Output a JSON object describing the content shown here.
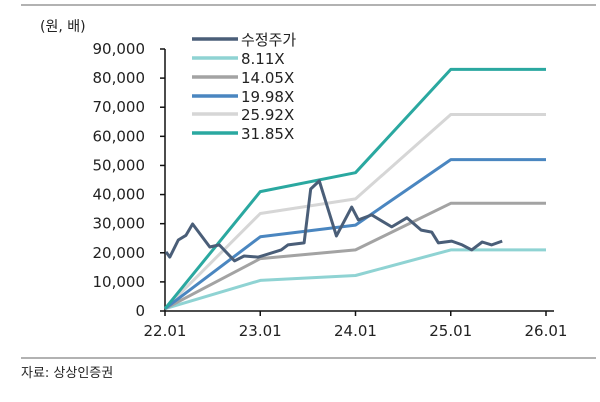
{
  "chart_data": {
    "type": "line",
    "title": "",
    "unit_label": "(원, 배)",
    "source": "자료: 상상인증권",
    "xlabel": "",
    "ylabel": "",
    "xlim": [
      2022,
      2026
    ],
    "ylim": [
      0,
      90000
    ],
    "x_ticks": [
      2022,
      2023,
      2024,
      2025,
      2026
    ],
    "x_tick_labels": [
      "22.01",
      "23.01",
      "24.01",
      "25.01",
      "26.01"
    ],
    "y_ticks": [
      0,
      10000,
      20000,
      30000,
      40000,
      50000,
      60000,
      70000,
      80000,
      90000
    ],
    "y_tick_labels": [
      "0",
      "10,000",
      "20,000",
      "30,000",
      "40,000",
      "50,000",
      "60,000",
      "70,000",
      "80,000",
      "90,000"
    ],
    "grid": false,
    "legend_position": "top-left",
    "series": [
      {
        "name": "수정주가",
        "color": "#4a5e78",
        "points": [
          [
            2022.01,
            20300
          ],
          [
            2022.05,
            18500
          ],
          [
            2022.14,
            24400
          ],
          [
            2022.22,
            26000
          ],
          [
            2022.29,
            29900
          ],
          [
            2022.47,
            22000
          ],
          [
            2022.57,
            22700
          ],
          [
            2022.73,
            17200
          ],
          [
            2022.83,
            18900
          ],
          [
            2022.98,
            18500
          ],
          [
            2023.22,
            21000
          ],
          [
            2023.29,
            22700
          ],
          [
            2023.46,
            23400
          ],
          [
            2023.53,
            41900
          ],
          [
            2023.62,
            44700
          ],
          [
            2023.8,
            25800
          ],
          [
            2023.96,
            35700
          ],
          [
            2024.03,
            31300
          ],
          [
            2024.17,
            33000
          ],
          [
            2024.38,
            28900
          ],
          [
            2024.54,
            32000
          ],
          [
            2024.69,
            27800
          ],
          [
            2024.8,
            27100
          ],
          [
            2024.87,
            23400
          ],
          [
            2025.01,
            24000
          ],
          [
            2025.12,
            22700
          ],
          [
            2025.22,
            21000
          ],
          [
            2025.33,
            23700
          ],
          [
            2025.43,
            22700
          ],
          [
            2025.54,
            24000
          ]
        ]
      },
      {
        "name": "8.11X",
        "color": "#8fd3d3",
        "points": [
          [
            2022.0,
            800
          ],
          [
            2023.0,
            10500
          ],
          [
            2024.0,
            12200
          ],
          [
            2025.0,
            21000
          ],
          [
            2026.0,
            21000
          ]
        ]
      },
      {
        "name": "14.05X",
        "color": "#a3a3a3",
        "points": [
          [
            2022.0,
            800
          ],
          [
            2023.0,
            18000
          ],
          [
            2024.0,
            21000
          ],
          [
            2025.0,
            37000
          ],
          [
            2026.0,
            37000
          ]
        ]
      },
      {
        "name": "19.98X",
        "color": "#4a86c0",
        "points": [
          [
            2022.0,
            800
          ],
          [
            2023.0,
            25500
          ],
          [
            2024.0,
            29500
          ],
          [
            2025.0,
            52000
          ],
          [
            2026.0,
            52000
          ]
        ]
      },
      {
        "name": "25.92X",
        "color": "#d6d6d6",
        "points": [
          [
            2022.0,
            800
          ],
          [
            2023.0,
            33500
          ],
          [
            2024.0,
            38500
          ],
          [
            2025.0,
            67500
          ],
          [
            2026.0,
            67500
          ]
        ]
      },
      {
        "name": "31.85X",
        "color": "#2aa8a0",
        "points": [
          [
            2022.0,
            800
          ],
          [
            2023.0,
            41000
          ],
          [
            2024.0,
            47500
          ],
          [
            2025.0,
            83000
          ],
          [
            2026.0,
            83000
          ]
        ]
      }
    ]
  }
}
